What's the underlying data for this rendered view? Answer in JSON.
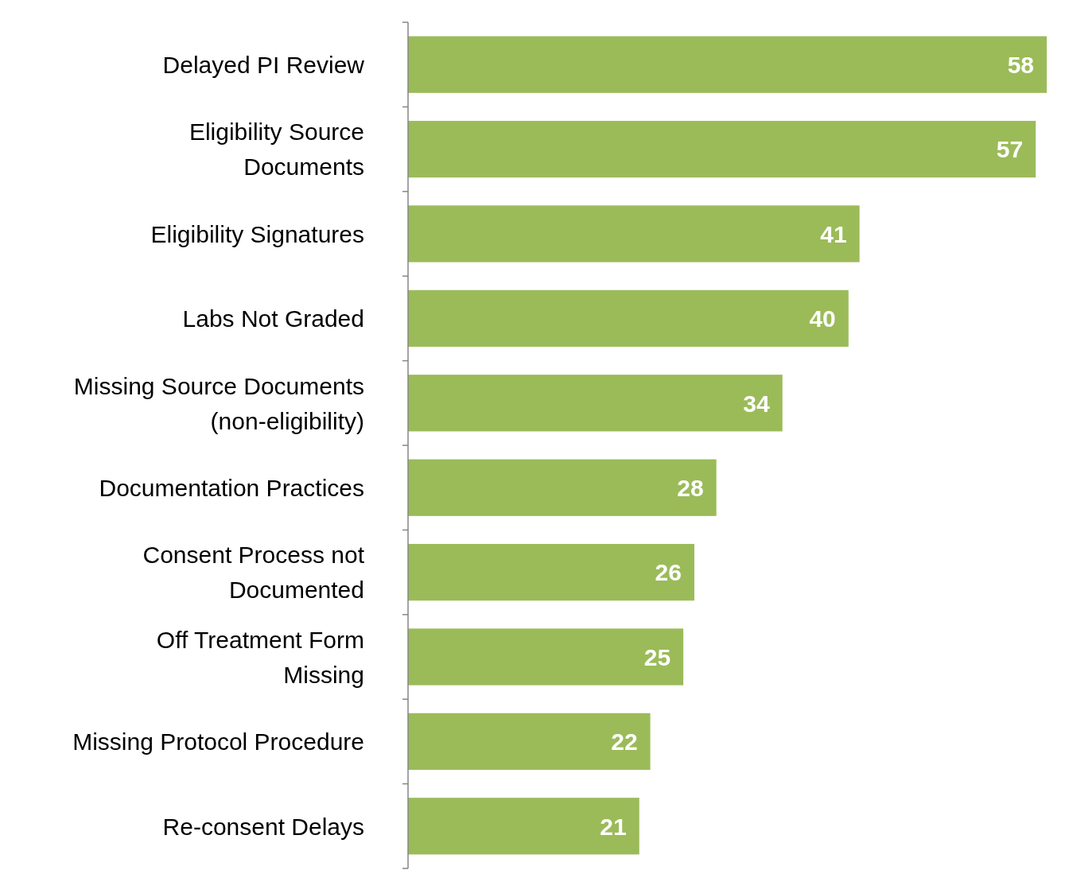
{
  "chart_data": {
    "type": "bar",
    "orientation": "horizontal",
    "data_labels": true,
    "color": "#9bbb59",
    "categories": [
      "Delayed PI Review",
      "Eligibility Source\nDocuments",
      "Eligibility Signatures",
      "Labs Not Graded",
      "Missing Source Documents\n(non-eligibility)",
      "Documentation Practices",
      "Consent Process not\nDocumented",
      "Off Treatment Form\nMissing",
      "Missing Protocol Procedure",
      "Re-consent Delays"
    ],
    "values": [
      58,
      57,
      41,
      40,
      34,
      28,
      26,
      25,
      22,
      21
    ]
  }
}
